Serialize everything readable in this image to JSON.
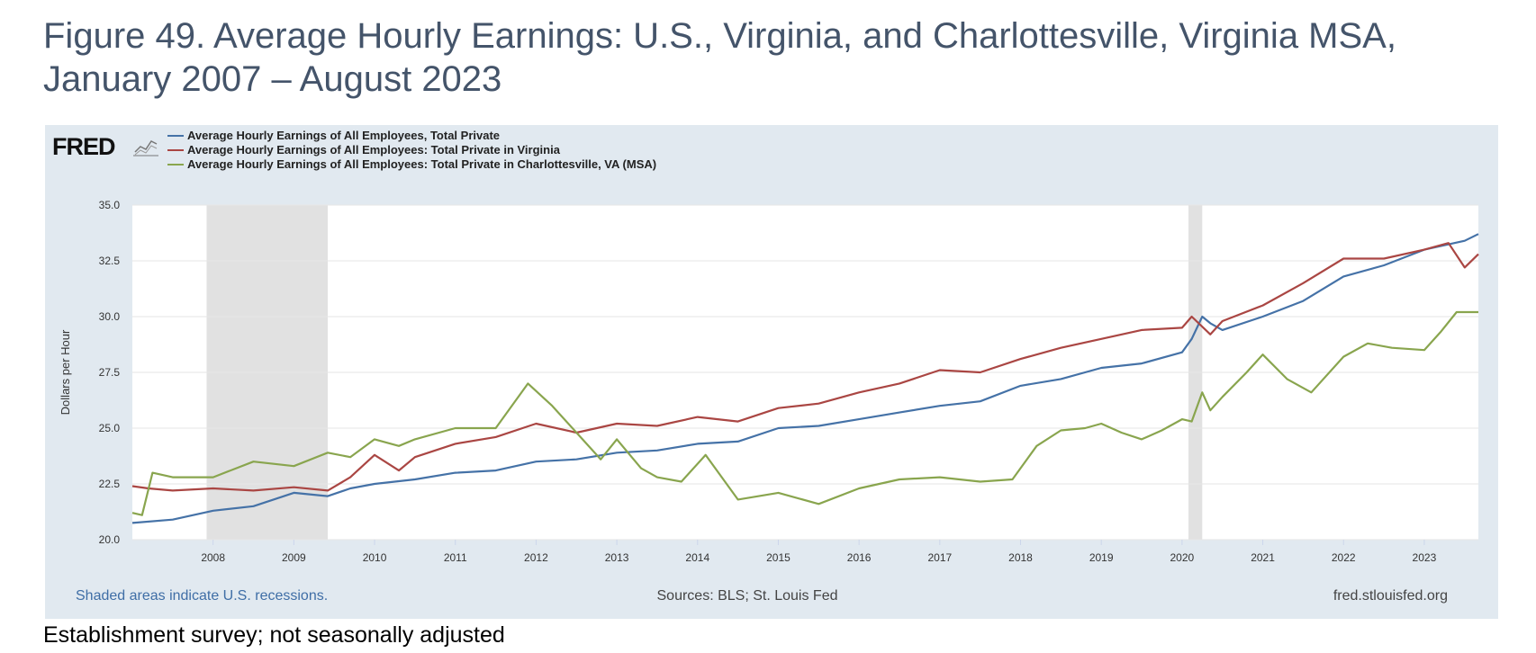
{
  "figure": {
    "title": "Figure 49.  Average Hourly Earnings:  U.S., Virginia, and Charlottesville, Virginia MSA, January 2007 – August 2023",
    "footnote": "Establishment survey; not seasonally adjusted"
  },
  "fred": {
    "logo_text": "FRED",
    "logo_icon": "chart-line-icon",
    "recession_note": "Shaded areas indicate U.S. recessions.",
    "sources": "Sources: BLS; St. Louis Fed",
    "url": "fred.stlouisfed.org"
  },
  "colors": {
    "us": "#4572a7",
    "va": "#aa4643",
    "cville": "#89a54e",
    "panel_bg": "#e1e9f0",
    "recession": "#e1e1e1",
    "footer_link": "#3f6ea6"
  },
  "chart_data": {
    "type": "line",
    "ylabel": "Dollars per Hour",
    "xlabel": "",
    "ylim": [
      20.0,
      35.0
    ],
    "yticks": [
      "20.0",
      "22.5",
      "25.0",
      "27.5",
      "30.0",
      "32.5",
      "35.0"
    ],
    "xlim": [
      2007.0,
      2023.67
    ],
    "xticks": [
      "2008",
      "2009",
      "2010",
      "2011",
      "2012",
      "2013",
      "2014",
      "2015",
      "2016",
      "2017",
      "2018",
      "2019",
      "2020",
      "2021",
      "2022",
      "2023"
    ],
    "grid": true,
    "legend_position": "top-left",
    "recessions": [
      [
        2007.92,
        2009.42
      ],
      [
        2020.08,
        2020.25
      ]
    ],
    "series": [
      {
        "name": "Average Hourly Earnings of All Employees, Total Private",
        "color": "#4572a7",
        "x": [
          2007.0,
          2007.5,
          2008.0,
          2008.5,
          2009.0,
          2009.42,
          2009.7,
          2010.0,
          2010.5,
          2011.0,
          2011.5,
          2012.0,
          2012.5,
          2013.0,
          2013.5,
          2014.0,
          2014.5,
          2015.0,
          2015.5,
          2016.0,
          2016.5,
          2017.0,
          2017.5,
          2018.0,
          2018.5,
          2019.0,
          2019.5,
          2020.0,
          2020.12,
          2020.25,
          2020.35,
          2020.5,
          2021.0,
          2021.5,
          2022.0,
          2022.5,
          2023.0,
          2023.5,
          2023.67
        ],
        "y": [
          20.75,
          20.9,
          21.3,
          21.5,
          22.1,
          21.95,
          22.3,
          22.5,
          22.7,
          23.0,
          23.1,
          23.5,
          23.6,
          23.9,
          24.0,
          24.3,
          24.4,
          25.0,
          25.1,
          25.4,
          25.7,
          26.0,
          26.2,
          26.9,
          27.2,
          27.7,
          27.9,
          28.4,
          29.0,
          30.0,
          29.7,
          29.4,
          30.0,
          30.7,
          31.8,
          32.3,
          33.0,
          33.4,
          33.7
        ]
      },
      {
        "name": "Average Hourly Earnings of All Employees: Total Private in Virginia",
        "color": "#aa4643",
        "x": [
          2007.0,
          2007.2,
          2007.5,
          2008.0,
          2008.5,
          2009.0,
          2009.42,
          2009.7,
          2010.0,
          2010.3,
          2010.5,
          2011.0,
          2011.5,
          2012.0,
          2012.5,
          2013.0,
          2013.5,
          2014.0,
          2014.5,
          2015.0,
          2015.5,
          2016.0,
          2016.5,
          2017.0,
          2017.5,
          2018.0,
          2018.5,
          2019.0,
          2019.5,
          2020.0,
          2020.12,
          2020.35,
          2020.5,
          2021.0,
          2021.5,
          2022.0,
          2022.5,
          2023.0,
          2023.3,
          2023.5,
          2023.67
        ],
        "y": [
          22.4,
          22.3,
          22.2,
          22.3,
          22.2,
          22.35,
          22.2,
          22.8,
          23.8,
          23.1,
          23.7,
          24.3,
          24.6,
          25.2,
          24.8,
          25.2,
          25.1,
          25.5,
          25.3,
          25.9,
          26.1,
          26.6,
          27.0,
          27.6,
          27.5,
          28.1,
          28.6,
          29.0,
          29.4,
          29.5,
          30.0,
          29.2,
          29.8,
          30.5,
          31.5,
          32.6,
          32.6,
          33.0,
          33.3,
          32.2,
          32.8
        ]
      },
      {
        "name": "Average Hourly Earnings of All Employees: Total Private in Charlottesville, VA (MSA)",
        "color": "#89a54e",
        "x": [
          2007.0,
          2007.12,
          2007.25,
          2007.5,
          2008.0,
          2008.5,
          2009.0,
          2009.42,
          2009.7,
          2010.0,
          2010.3,
          2010.5,
          2011.0,
          2011.5,
          2011.9,
          2012.2,
          2012.5,
          2012.8,
          2013.0,
          2013.3,
          2013.5,
          2013.8,
          2014.1,
          2014.5,
          2015.0,
          2015.5,
          2016.0,
          2016.5,
          2017.0,
          2017.5,
          2017.9,
          2018.2,
          2018.5,
          2018.8,
          2019.0,
          2019.25,
          2019.5,
          2019.75,
          2020.0,
          2020.12,
          2020.25,
          2020.35,
          2020.5,
          2020.8,
          2021.0,
          2021.3,
          2021.6,
          2022.0,
          2022.3,
          2022.6,
          2023.0,
          2023.2,
          2023.4,
          2023.67
        ],
        "y": [
          21.2,
          21.1,
          23.0,
          22.8,
          22.8,
          23.5,
          23.3,
          23.9,
          23.7,
          24.5,
          24.2,
          24.5,
          25.0,
          25.0,
          27.0,
          26.0,
          24.8,
          23.6,
          24.5,
          23.2,
          22.8,
          22.6,
          23.8,
          21.8,
          22.1,
          21.6,
          22.3,
          22.7,
          22.8,
          22.6,
          22.7,
          24.2,
          24.9,
          25.0,
          25.2,
          24.8,
          24.5,
          24.9,
          25.4,
          25.3,
          26.6,
          25.8,
          26.4,
          27.5,
          28.3,
          27.2,
          26.6,
          28.2,
          28.8,
          28.6,
          28.5,
          29.3,
          30.2,
          30.2
        ]
      }
    ]
  }
}
